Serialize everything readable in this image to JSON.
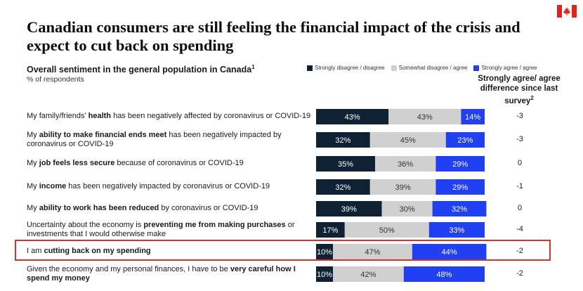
{
  "header": {
    "title": "Canadian consumers are still feeling the financial impact of the crisis and expect to cut back on spending",
    "subtitle": "Overall sentiment in the general population in Canada",
    "subtitle_sup": "1",
    "unit": "% of respondents",
    "diff_header": "Strongly agree/ agree difference since last survey",
    "diff_header_sup": "2",
    "flag_icon": "canada-flag-icon"
  },
  "colors": {
    "strongly_disagree": "#0f2233",
    "somewhat": "#d0d0d0",
    "strongly_agree": "#2040f2",
    "highlight": "#d2332c",
    "flag_red": "#e0251b"
  },
  "chart_data": {
    "type": "bar",
    "orientation": "horizontal",
    "stacked": true,
    "xlim": [
      0,
      100
    ],
    "series": [
      {
        "name": "Strongly disagree / disagree",
        "values": [
          43,
          32,
          35,
          32,
          39,
          17,
          10,
          10
        ]
      },
      {
        "name": "Somewhat disagree / agree",
        "values": [
          43,
          45,
          36,
          39,
          30,
          50,
          47,
          42
        ]
      },
      {
        "name": "Strongly agree / agree",
        "values": [
          14,
          23,
          29,
          29,
          32,
          33,
          44,
          48
        ]
      }
    ],
    "categories": [
      {
        "parts": [
          [
            "My family/friends’ ",
            false
          ],
          [
            "health",
            true
          ],
          [
            " has been negatively affected by coronavirus or COVID-19",
            false
          ]
        ],
        "diff": "-3"
      },
      {
        "parts": [
          [
            "My ",
            false
          ],
          [
            "ability to make financial ends meet",
            true
          ],
          [
            " has been negatively impacted by coronavirus or COVID-19",
            false
          ]
        ],
        "diff": "-3"
      },
      {
        "parts": [
          [
            "My ",
            false
          ],
          [
            "job feels less secure",
            true
          ],
          [
            " because of coronavirus or COVID-19",
            false
          ]
        ],
        "diff": "0"
      },
      {
        "parts": [
          [
            "My ",
            false
          ],
          [
            "income",
            true
          ],
          [
            " has been negatively impacted by coronavirus or COVID-19",
            false
          ]
        ],
        "diff": "-1"
      },
      {
        "parts": [
          [
            "My ",
            false
          ],
          [
            "ability to work has been reduced",
            true
          ],
          [
            " by coronavirus or COVID-19",
            false
          ]
        ],
        "diff": "0"
      },
      {
        "parts": [
          [
            "Uncertainty about the economy is ",
            false
          ],
          [
            "preventing me from making purchases",
            true
          ],
          [
            " or investments that I would otherwise make",
            false
          ]
        ],
        "diff": "-4"
      },
      {
        "parts": [
          [
            "I am ",
            false
          ],
          [
            "cutting back on my spending",
            true
          ]
        ],
        "diff": "-2",
        "highlighted": true
      },
      {
        "parts": [
          [
            "Given the economy and my personal finances, I have to be ",
            false
          ],
          [
            "very careful how I spend my money",
            true
          ]
        ],
        "diff": "-2"
      }
    ],
    "value_suffix": "%",
    "legend_position": "top"
  }
}
